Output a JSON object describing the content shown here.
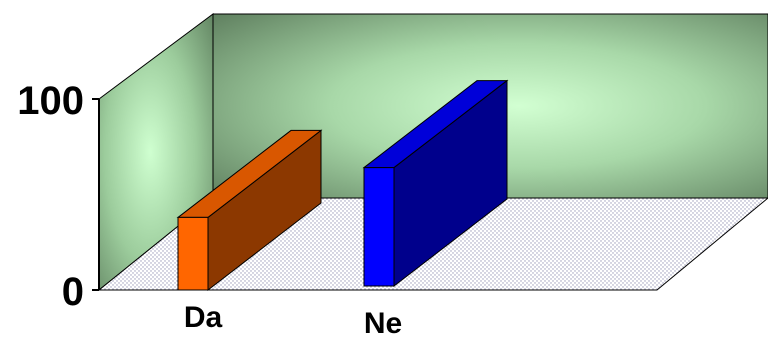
{
  "chart_data": {
    "type": "bar",
    "style": "3d-column",
    "categories": [
      "Da",
      "Ne"
    ],
    "values": [
      38,
      62
    ],
    "ylim": [
      0,
      100
    ],
    "yticks": [
      "0",
      "100"
    ],
    "series_colors": [
      "#ff6600",
      "#0000ff"
    ],
    "wall_color": "#c8f5c8",
    "floor_pattern": "dotted",
    "legend": "none",
    "grid": false
  }
}
